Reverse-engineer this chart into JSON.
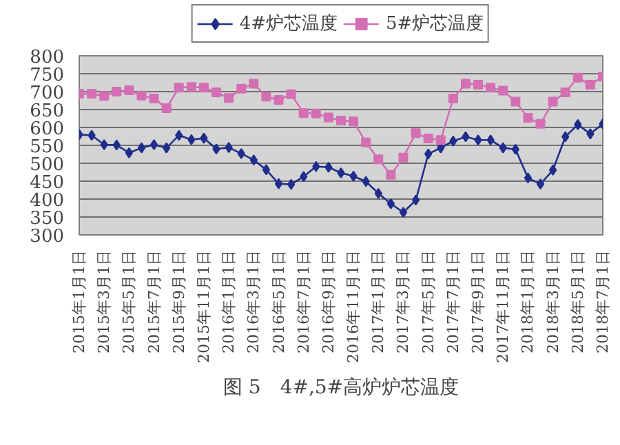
{
  "chart_data": {
    "type": "line",
    "title": "图 5　4#,5#高炉炉芯温度",
    "categories": [
      "2015年1月1日",
      null,
      "2015年3月1日",
      null,
      "2015年5月1日",
      null,
      "2015年7月1日",
      null,
      "2015年9月1日",
      null,
      "2015年11月1日",
      null,
      "2016年1月1日",
      null,
      "2016年3月1日",
      null,
      "2016年5月1日",
      null,
      "2016年7月1日",
      null,
      "2016年9月1日",
      null,
      "2016年11月1日",
      null,
      "2017年1月1日",
      null,
      "2017年3月1日",
      null,
      "2017年5月1日",
      null,
      "2017年7月1日",
      null,
      "2017年9月1日",
      null,
      "2017年11月1日",
      null,
      "2018年1月1日",
      null,
      "2018年3月1日",
      null,
      "2018年5月1日",
      null,
      "2018年7月1日"
    ],
    "series": [
      {
        "name": "4#炉芯温度",
        "color": "#1f2e8c",
        "marker": "diamond",
        "values": [
          580,
          578,
          552,
          551,
          529,
          543,
          552,
          543,
          578,
          566,
          570,
          540,
          544,
          527,
          509,
          482,
          443,
          441,
          463,
          491,
          489,
          473,
          464,
          449,
          416,
          387,
          363,
          397,
          526,
          543,
          562,
          574,
          565,
          565,
          543,
          539,
          459,
          442,
          481,
          574,
          608,
          582,
          610
        ]
      },
      {
        "name": "5#炉芯温度",
        "color": "#d46fb4",
        "marker": "square",
        "values": [
          694,
          694,
          688,
          700,
          704,
          689,
          681,
          654,
          711,
          713,
          711,
          698,
          682,
          708,
          722,
          686,
          677,
          693,
          640,
          639,
          628,
          619,
          617,
          558,
          511,
          468,
          516,
          584,
          569,
          565,
          681,
          722,
          719,
          711,
          703,
          672,
          627,
          610,
          672,
          698,
          739,
          719,
          742
        ]
      }
    ],
    "ylim": [
      300,
      800
    ],
    "yticks": [
      300,
      350,
      400,
      450,
      500,
      550,
      600,
      650,
      700,
      750,
      800
    ],
    "grid": "y",
    "legend": "top",
    "line_style": "solid"
  }
}
